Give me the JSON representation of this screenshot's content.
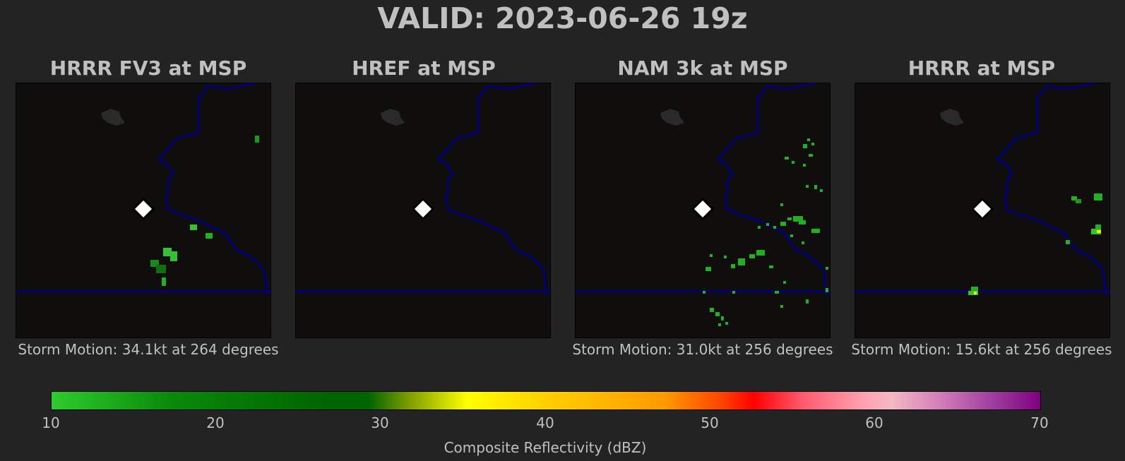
{
  "title": "VALID: 2023-06-26 19z",
  "panels": [
    {
      "title": "HRRR FV3 at MSP",
      "caption": "Storm Motion: 34.1kt at 264 degrees"
    },
    {
      "title": "HREF at MSP",
      "caption": ""
    },
    {
      "title": "NAM 3k at MSP",
      "caption": "Storm Motion: 31.0kt at 256 degrees"
    },
    {
      "title": "HRRR at MSP",
      "caption": "Storm Motion: 15.6kt at 256 degrees"
    }
  ],
  "station_marker": "diamond-icon",
  "colorbar": {
    "label": "Composite Reflectivity (dBZ)",
    "ticks": [
      "10",
      "20",
      "30",
      "40",
      "50",
      "60",
      "70"
    ],
    "min": 10,
    "max": 70,
    "colors": [
      "#2ecc2e",
      "#006400",
      "#ffff00",
      "#ff9a00",
      "#ff0000",
      "#f4b8c4",
      "#800080"
    ]
  },
  "map_colors": {
    "background": "#100d0d",
    "border": "#00007a",
    "lake": "#2a2a2a"
  }
}
